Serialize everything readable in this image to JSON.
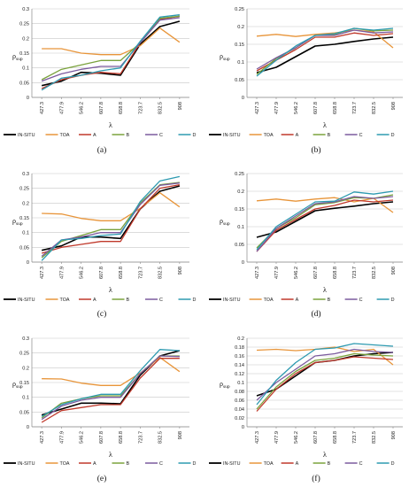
{
  "chart_data": [
    {
      "type": "line",
      "caption": "(a)",
      "xlabel": "λ",
      "ylabel": "ρ",
      "ylabel_sub": "sup",
      "categories": [
        "427.3",
        "477.9",
        "546.2",
        "607.8",
        "658.8",
        "723.7",
        "832.5",
        "908"
      ],
      "ylim": [
        0,
        0.3
      ],
      "yticks": [
        "0",
        "0.05",
        "0.1",
        "0.15",
        "0.2",
        "0.25",
        "0.3"
      ],
      "series": [
        {
          "name": "IN-SITU",
          "color": "#000000",
          "values": [
            0.04,
            0.055,
            0.085,
            0.082,
            0.075,
            0.18,
            0.24,
            0.258
          ]
        },
        {
          "name": "TOA",
          "color": "#e8953a",
          "values": [
            0.165,
            0.165,
            0.15,
            0.145,
            0.145,
            0.175,
            0.235,
            0.187
          ]
        },
        {
          "name": "A",
          "color": "#c0392b",
          "values": [
            0.03,
            0.06,
            0.075,
            0.085,
            0.08,
            0.185,
            0.265,
            0.275
          ]
        },
        {
          "name": "B",
          "color": "#7aa23c",
          "values": [
            0.06,
            0.095,
            0.11,
            0.125,
            0.125,
            0.185,
            0.268,
            0.275
          ]
        },
        {
          "name": "C",
          "color": "#7b5a9e",
          "values": [
            0.055,
            0.08,
            0.095,
            0.105,
            0.105,
            0.185,
            0.262,
            0.27
          ]
        },
        {
          "name": "D",
          "color": "#2d9ab0",
          "values": [
            0.025,
            0.065,
            0.075,
            0.09,
            0.1,
            0.19,
            0.272,
            0.28
          ]
        }
      ]
    },
    {
      "type": "line",
      "caption": "(b)",
      "xlabel": "λ",
      "ylabel": "ρ",
      "ylabel_sub": "sup",
      "categories": [
        "427.3",
        "477.9",
        "546.2",
        "607.8",
        "658.8",
        "723.7",
        "832.5",
        "908"
      ],
      "ylim": [
        0,
        0.25
      ],
      "yticks": [
        "0",
        "0.05",
        "0.1",
        "0.15",
        "0.2",
        "0.25"
      ],
      "series": [
        {
          "name": "IN-SITU",
          "color": "#000000",
          "values": [
            0.07,
            0.085,
            0.115,
            0.145,
            0.15,
            0.158,
            0.165,
            0.17
          ]
        },
        {
          "name": "TOA",
          "color": "#e8953a",
          "values": [
            0.173,
            0.178,
            0.172,
            0.178,
            0.182,
            0.19,
            0.185,
            0.14
          ]
        },
        {
          "name": "A",
          "color": "#c0392b",
          "values": [
            0.075,
            0.105,
            0.135,
            0.17,
            0.17,
            0.182,
            0.175,
            0.18
          ]
        },
        {
          "name": "B",
          "color": "#7aa23c",
          "values": [
            0.065,
            0.11,
            0.14,
            0.175,
            0.178,
            0.195,
            0.188,
            0.19
          ]
        },
        {
          "name": "C",
          "color": "#7b5a9e",
          "values": [
            0.08,
            0.112,
            0.14,
            0.175,
            0.175,
            0.19,
            0.182,
            0.185
          ]
        },
        {
          "name": "D",
          "color": "#2d9ab0",
          "values": [
            0.06,
            0.105,
            0.145,
            0.175,
            0.18,
            0.195,
            0.19,
            0.195
          ]
        }
      ]
    },
    {
      "type": "line",
      "caption": "(c)",
      "xlabel": "λ",
      "ylabel": "ρ",
      "ylabel_sub": "sup",
      "categories": [
        "427.3",
        "477.9",
        "546.2",
        "607.8",
        "658.8",
        "723.7",
        "832.5",
        "908"
      ],
      "ylim": [
        0,
        0.3
      ],
      "yticks": [
        "0",
        "0.05",
        "0.1",
        "0.15",
        "0.2",
        "0.25",
        "0.3"
      ],
      "series": [
        {
          "name": "IN-SITU",
          "color": "#000000",
          "values": [
            0.04,
            0.055,
            0.085,
            0.085,
            0.08,
            0.18,
            0.24,
            0.258
          ]
        },
        {
          "name": "TOA",
          "color": "#e8953a",
          "values": [
            0.165,
            0.163,
            0.148,
            0.14,
            0.14,
            0.182,
            0.235,
            0.187
          ]
        },
        {
          "name": "A",
          "color": "#c0392b",
          "values": [
            0.03,
            0.05,
            0.06,
            0.07,
            0.07,
            0.18,
            0.25,
            0.262
          ]
        },
        {
          "name": "B",
          "color": "#7aa23c",
          "values": [
            0.015,
            0.07,
            0.09,
            0.11,
            0.11,
            0.2,
            0.262,
            0.27
          ]
        },
        {
          "name": "C",
          "color": "#7b5a9e",
          "values": [
            0.02,
            0.075,
            0.085,
            0.1,
            0.1,
            0.195,
            0.26,
            0.268
          ]
        },
        {
          "name": "D",
          "color": "#2d9ab0",
          "values": [
            0.005,
            0.075,
            0.08,
            0.09,
            0.095,
            0.205,
            0.275,
            0.29
          ]
        }
      ]
    },
    {
      "type": "line",
      "caption": "(d)",
      "xlabel": "λ",
      "ylabel": "ρ",
      "ylabel_sub": "sup",
      "categories": [
        "427.3",
        "477.9",
        "546.2",
        "607.8",
        "658.8",
        "723.7",
        "832.5",
        "908"
      ],
      "ylim": [
        0,
        0.25
      ],
      "yticks": [
        "0",
        "0.05",
        "0.1",
        "0.15",
        "0.2",
        "0.25"
      ],
      "series": [
        {
          "name": "IN-SITU",
          "color": "#000000",
          "values": [
            0.07,
            0.085,
            0.115,
            0.145,
            0.152,
            0.158,
            0.165,
            0.17
          ]
        },
        {
          "name": "TOA",
          "color": "#e8953a",
          "values": [
            0.173,
            0.178,
            0.172,
            0.178,
            0.182,
            0.17,
            0.18,
            0.14
          ]
        },
        {
          "name": "A",
          "color": "#c0392b",
          "values": [
            0.03,
            0.09,
            0.12,
            0.15,
            0.16,
            0.175,
            0.17,
            0.175
          ]
        },
        {
          "name": "B",
          "color": "#7aa23c",
          "values": [
            0.04,
            0.095,
            0.125,
            0.162,
            0.168,
            0.182,
            0.18,
            0.19
          ]
        },
        {
          "name": "C",
          "color": "#7b5a9e",
          "values": [
            0.03,
            0.095,
            0.13,
            0.165,
            0.17,
            0.185,
            0.18,
            0.185
          ]
        },
        {
          "name": "D",
          "color": "#2d9ab0",
          "values": [
            0.035,
            0.1,
            0.135,
            0.17,
            0.172,
            0.198,
            0.192,
            0.2
          ]
        }
      ]
    },
    {
      "type": "line",
      "caption": "(e)",
      "xlabel": "λ",
      "ylabel": "ρ",
      "ylabel_sub": "sup",
      "categories": [
        "427.3",
        "477.9",
        "546.2",
        "607.8",
        "658.8",
        "723.7",
        "832.5",
        "908"
      ],
      "ylim": [
        0,
        0.3
      ],
      "yticks": [
        "0",
        "0.05",
        "0.1",
        "0.15",
        "0.2",
        "0.25",
        "0.3"
      ],
      "series": [
        {
          "name": "IN-SITU",
          "color": "#000000",
          "values": [
            0.04,
            0.06,
            0.08,
            0.08,
            0.078,
            0.175,
            0.24,
            0.258
          ]
        },
        {
          "name": "TOA",
          "color": "#e8953a",
          "values": [
            0.163,
            0.162,
            0.148,
            0.14,
            0.14,
            0.182,
            0.235,
            0.187
          ]
        },
        {
          "name": "A",
          "color": "#c0392b",
          "values": [
            0.015,
            0.055,
            0.065,
            0.075,
            0.075,
            0.165,
            0.232,
            0.232
          ]
        },
        {
          "name": "B",
          "color": "#7aa23c",
          "values": [
            0.03,
            0.08,
            0.095,
            0.105,
            0.105,
            0.18,
            0.24,
            0.24
          ]
        },
        {
          "name": "C",
          "color": "#7b5a9e",
          "values": [
            0.025,
            0.07,
            0.09,
            0.1,
            0.1,
            0.18,
            0.24,
            0.238
          ]
        },
        {
          "name": "D",
          "color": "#2d9ab0",
          "values": [
            0.035,
            0.075,
            0.095,
            0.11,
            0.11,
            0.19,
            0.262,
            0.258
          ]
        }
      ]
    },
    {
      "type": "line",
      "caption": "(f)",
      "xlabel": "λ",
      "ylabel": "ρ",
      "ylabel_sub": "sup",
      "categories": [
        "427.3",
        "477.9",
        "546.2",
        "607.8",
        "658.8",
        "723.7",
        "832.5",
        "908"
      ],
      "ylim": [
        0,
        0.2
      ],
      "yticks": [
        "0",
        "0.02",
        "0.04",
        "0.06",
        "0.08",
        "0.1",
        "0.12",
        "0.14",
        "0.16",
        "0.18",
        "0.2"
      ],
      "series": [
        {
          "name": "IN-SITU",
          "color": "#000000",
          "values": [
            0.07,
            0.085,
            0.115,
            0.145,
            0.15,
            0.16,
            0.165,
            0.168
          ]
        },
        {
          "name": "TOA",
          "color": "#e8953a",
          "values": [
            0.173,
            0.175,
            0.172,
            0.175,
            0.18,
            0.17,
            0.175,
            0.14
          ]
        },
        {
          "name": "A",
          "color": "#c0392b",
          "values": [
            0.035,
            0.085,
            0.12,
            0.145,
            0.15,
            0.158,
            0.155,
            0.152
          ]
        },
        {
          "name": "B",
          "color": "#7aa23c",
          "values": [
            0.04,
            0.09,
            0.125,
            0.15,
            0.155,
            0.165,
            0.162,
            0.16
          ]
        },
        {
          "name": "C",
          "color": "#7b5a9e",
          "values": [
            0.06,
            0.1,
            0.13,
            0.16,
            0.165,
            0.175,
            0.17,
            0.168
          ]
        },
        {
          "name": "D",
          "color": "#2d9ab0",
          "values": [
            0.05,
            0.105,
            0.145,
            0.175,
            0.178,
            0.188,
            0.185,
            0.182
          ]
        }
      ]
    }
  ]
}
